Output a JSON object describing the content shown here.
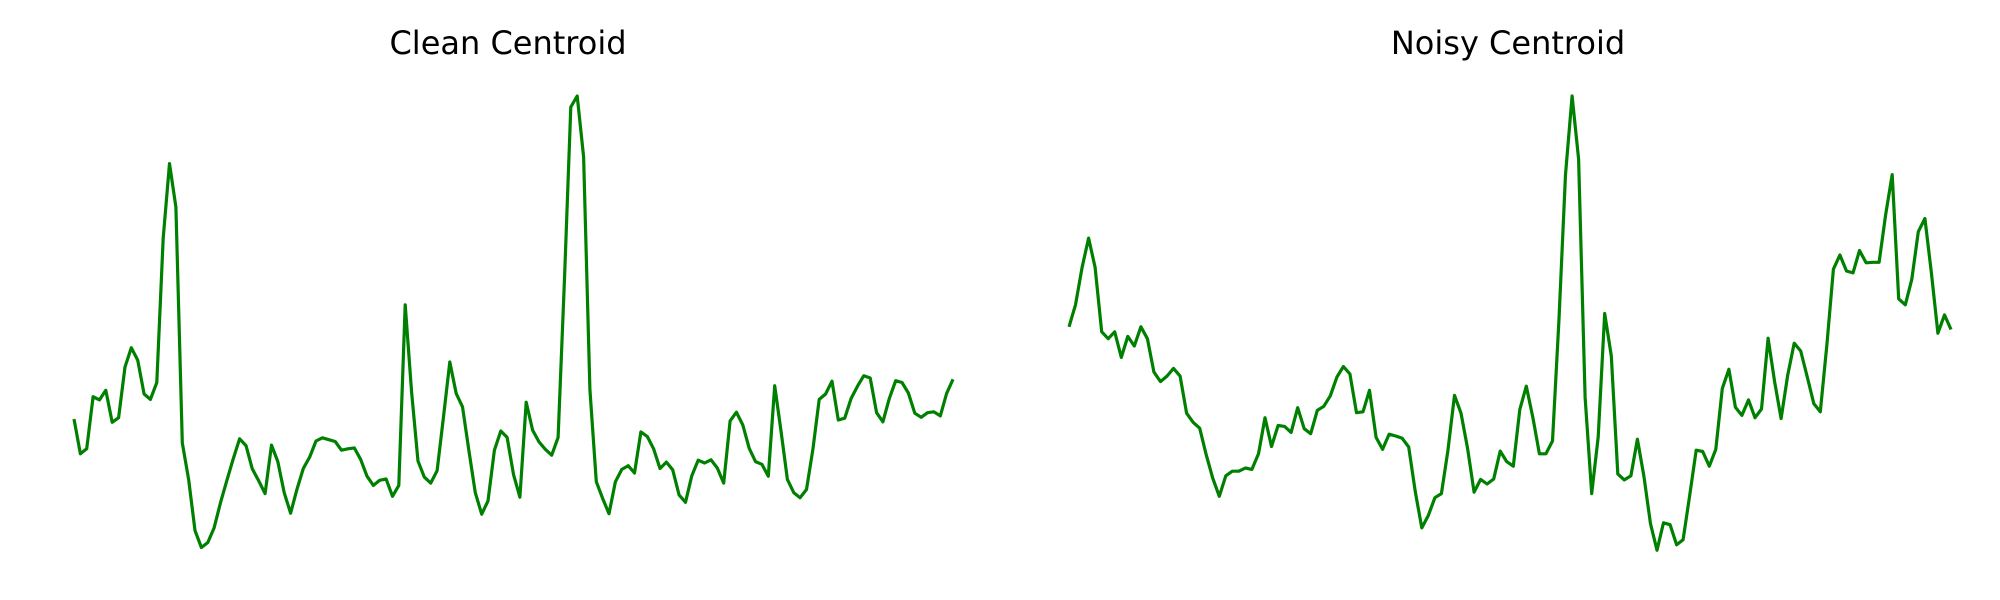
{
  "charts_meta": {
    "line_color": "#008000",
    "background": "#ffffff",
    "axes_visible": false,
    "grid": false
  },
  "chart_data": [
    {
      "type": "line",
      "title": "Clean Centroid",
      "xlabel": "",
      "ylabel": "",
      "color": "#008000",
      "ylim": [
        0,
        100
      ],
      "values": [
        29.3,
        21.7,
        22.8,
        34.2,
        33.5,
        35.6,
        28.6,
        29.6,
        40.7,
        44.9,
        42.2,
        34.8,
        33.6,
        37.3,
        68.9,
        85.2,
        75.7,
        24.1,
        16.0,
        4.9,
        1.2,
        2.3,
        5.5,
        11.0,
        15.9,
        20.6,
        25.0,
        23.5,
        18.4,
        15.8,
        13.0,
        23.6,
        20.0,
        13.2,
        8.7,
        13.9,
        18.5,
        21.0,
        24.5,
        25.2,
        24.8,
        24.4,
        22.5,
        22.8,
        23.0,
        20.5,
        16.8,
        14.8,
        15.9,
        16.2,
        12.4,
        14.8,
        54.3,
        35.2,
        20.1,
        16.6,
        15.3,
        18.0,
        29.6,
        41.8,
        34.9,
        32.0,
        22.4,
        13.2,
        8.5,
        11.4,
        22.5,
        26.7,
        25.3,
        17.2,
        12.2,
        33.0,
        26.9,
        24.3,
        22.7,
        21.4,
        25.3,
        60.0,
        97.6,
        100.0,
        86.7,
        35.8,
        15.6,
        11.9,
        8.6,
        15.6,
        18.3,
        19.1,
        17.5,
        26.5,
        25.5,
        22.8,
        18.5,
        19.9,
        18.2,
        12.7,
        11.1,
        16.9,
        20.3,
        19.7,
        20.4,
        18.6,
        15.3,
        28.9,
        30.8,
        28.0,
        22.9,
        20.0,
        19.4,
        16.8,
        36.6,
        26.7,
        16.1,
        13.2,
        12.1,
        13.9,
        22.7,
        33.6,
        34.8,
        37.6,
        29.1,
        29.5,
        33.8,
        36.5,
        38.8,
        38.3,
        30.7,
        28.7,
        33.8,
        37.7,
        37.3,
        35.0,
        30.6,
        29.7,
        30.7,
        30.9,
        30.0,
        34.9,
        38.0
      ]
    },
    {
      "type": "line",
      "title": "Noisy Centroid",
      "xlabel": "",
      "ylabel": "",
      "color": "#008000",
      "ylim": [
        0,
        100
      ],
      "values": [
        49.5,
        54.3,
        62.5,
        68.9,
        62.5,
        48.4,
        46.9,
        48.4,
        42.8,
        47.4,
        45.3,
        49.5,
        46.9,
        39.6,
        37.5,
        38.7,
        40.4,
        38.7,
        30.6,
        28.6,
        27.3,
        21.5,
        16.4,
        12.4,
        16.9,
        17.9,
        17.9,
        18.6,
        18.3,
        21.7,
        29.6,
        23.3,
        27.9,
        27.7,
        26.4,
        31.8,
        27.2,
        26.1,
        31.2,
        32.1,
        34.4,
        38.5,
        40.8,
        39.2,
        30.7,
        30.9,
        35.6,
        25.3,
        22.7,
        26.0,
        25.6,
        25.1,
        23.2,
        13.4,
        5.5,
        8.2,
        12.1,
        13.0,
        22.4,
        34.5,
        30.6,
        23.0,
        13.3,
        16.1,
        15.1,
        16.2,
        22.3,
        20.0,
        19.0,
        31.4,
        36.5,
        29.6,
        21.7,
        21.7,
        24.5,
        51.2,
        82.8,
        100.0,
        86.2,
        34.1,
        13.0,
        25.4,
        52.4,
        43.1,
        17.3,
        16.0,
        16.9,
        24.9,
        16.8,
        6.4,
        0.6,
        6.6,
        6.2,
        1.8,
        2.9,
        12.6,
        22.5,
        22.2,
        19.0,
        22.7,
        36.0,
        40.2,
        31.9,
        30.1,
        33.5,
        29.6,
        31.5,
        47.0,
        37.5,
        29.4,
        38.9,
        45.9,
        44.2,
        38.5,
        32.7,
        30.9,
        45.6,
        62.1,
        65.2,
        61.7,
        61.3,
        66.2,
        63.5,
        63.6,
        63.6,
        74.1,
        82.8,
        55.6,
        54.3,
        59.9,
        70.3,
        73.2,
        61.3,
        48.1,
        52.1,
        48.9
      ]
    }
  ]
}
